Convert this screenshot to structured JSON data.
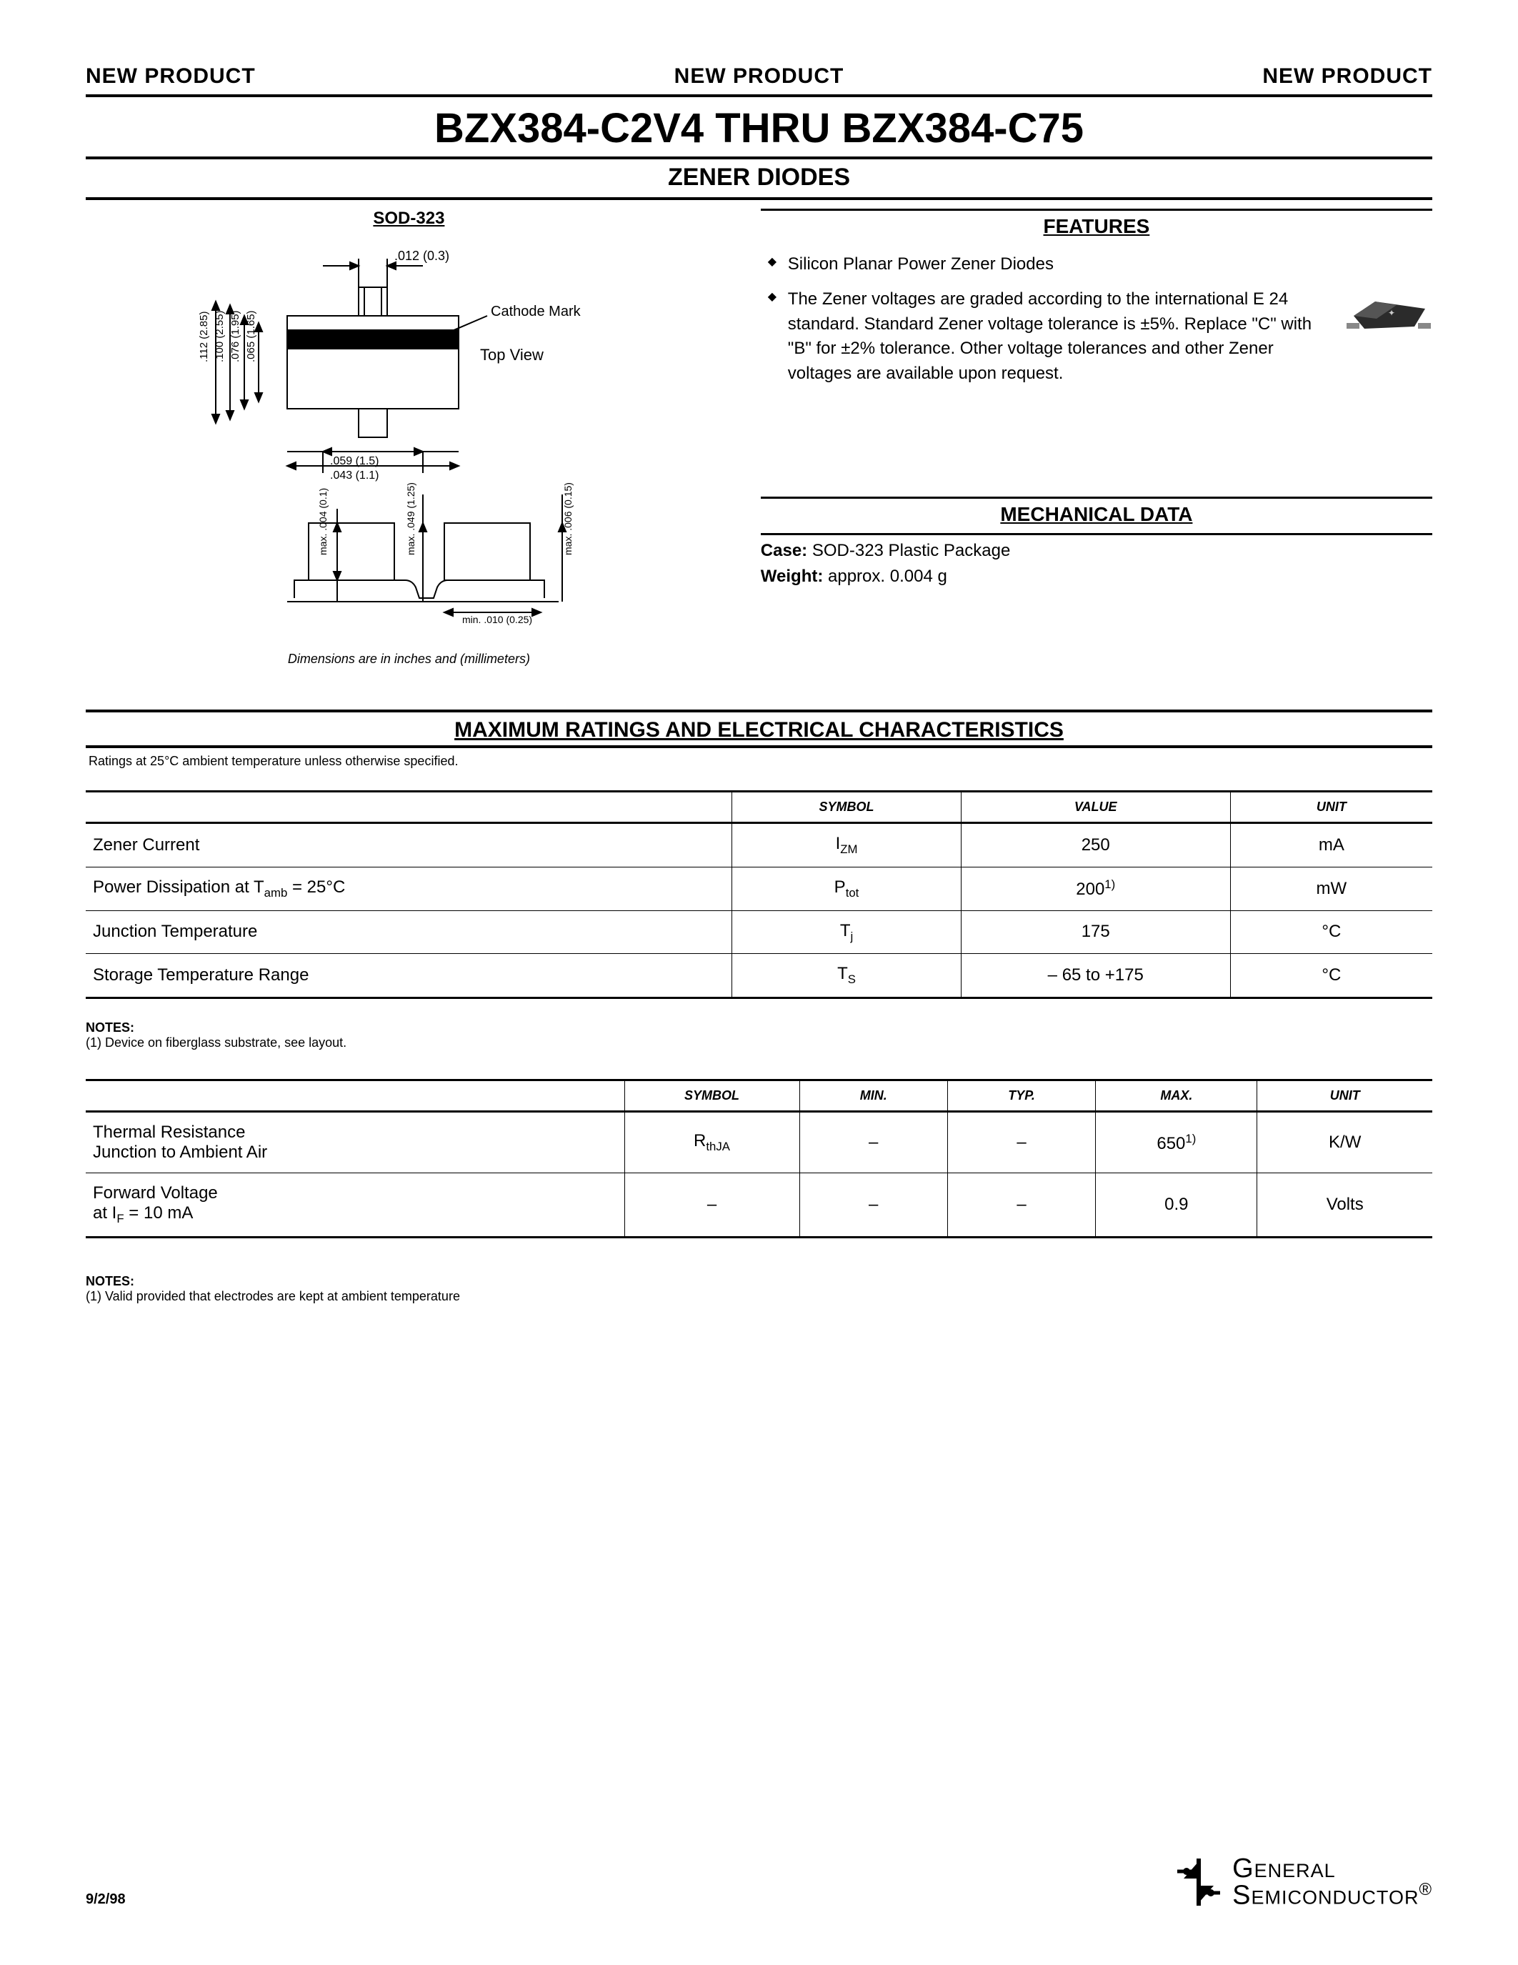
{
  "header": {
    "banner": "NEW PRODUCT",
    "title": "BZX384-C2V4 THRU BZX384-C75",
    "subtitle": "ZENER DIODES"
  },
  "package": {
    "label": "SOD-323",
    "top_view": "Top View",
    "cathode_mark": "Cathode Mark",
    "dim_note": "Dimensions are in inches and (millimeters)",
    "dims": {
      "d012": ".012 (0.3)",
      "d112": ".112 (2.85)",
      "d100": ".100 (2.55)",
      "d076": ".076 (1.95)",
      "d065": ".065 (1.65)",
      "d059": ".059 (1.5)",
      "d043": ".043 (1.1)",
      "max004": "max. .004 (0.1)",
      "max049": "max. .049 (1.25)",
      "max006": "max. .006 (0.15)",
      "min010": "min. .010 (0.25)"
    }
  },
  "features": {
    "heading": "FEATURES",
    "items": [
      "Silicon Planar Power Zener Diodes",
      "The Zener voltages are graded according to the international E 24 standard. Standard Zener voltage tolerance is ±5%. Replace \"C\" with \"B\" for ±2% tolerance. Other voltage tolerances and other Zener voltages are available upon request."
    ]
  },
  "mechanical": {
    "heading": "MECHANICAL DATA",
    "case_label": "Case:",
    "case_value": "SOD-323 Plastic Package",
    "weight_label": "Weight:",
    "weight_value": "approx. 0.004 g"
  },
  "ratings_section": {
    "title": "MAXIMUM RATINGS AND ELECTRICAL CHARACTERISTICS",
    "note": "Ratings at 25°C ambient temperature unless otherwise specified."
  },
  "table1": {
    "headers": [
      "",
      "SYMBOL",
      "VALUE",
      "UNIT"
    ],
    "rows": [
      {
        "param": "Zener Current",
        "symbol_html": "I<sub>ZM</sub>",
        "value": "250",
        "unit": "mA"
      },
      {
        "param_html": "Power Dissipation at T<sub>amb</sub> = 25°C",
        "symbol_html": "P<sub>tot</sub>",
        "value_html": "200<sup>1)</sup>",
        "unit": "mW"
      },
      {
        "param": "Junction Temperature",
        "symbol_html": "T<sub>j</sub>",
        "value": "175",
        "unit": "°C"
      },
      {
        "param": "Storage Temperature Range",
        "symbol_html": "T<sub>S</sub>",
        "value": "– 65 to +175",
        "unit": "°C"
      }
    ]
  },
  "notes1": {
    "heading": "NOTES:",
    "text": "(1) Device on fiberglass substrate, see layout."
  },
  "table2": {
    "headers": [
      "",
      "SYMBOL",
      "MIN.",
      "TYP.",
      "MAX.",
      "UNIT"
    ],
    "rows": [
      {
        "param_html": "Thermal Resistance<br>Junction to Ambient Air",
        "symbol_html": "R<sub>thJA</sub>",
        "min": "–",
        "typ": "–",
        "max_html": "650<sup>1)</sup>",
        "unit": "K/W"
      },
      {
        "param_html": "Forward Voltage<br>at I<sub>F</sub> = 10 mA",
        "symbol": "–",
        "min": "–",
        "typ": "–",
        "max": "0.9",
        "unit": "Volts"
      }
    ]
  },
  "notes2": {
    "heading": "NOTES:",
    "text": "(1) Valid provided that electrodes are kept at ambient temperature"
  },
  "footer": {
    "date": "9/2/98",
    "company_l1": "General",
    "company_l2": "Semiconductor",
    "reg": "®"
  },
  "colors": {
    "text": "#000000",
    "bg": "#ffffff",
    "rule": "#000000",
    "chip_body": "#2b2b2b",
    "chip_highlight": "#888888"
  }
}
